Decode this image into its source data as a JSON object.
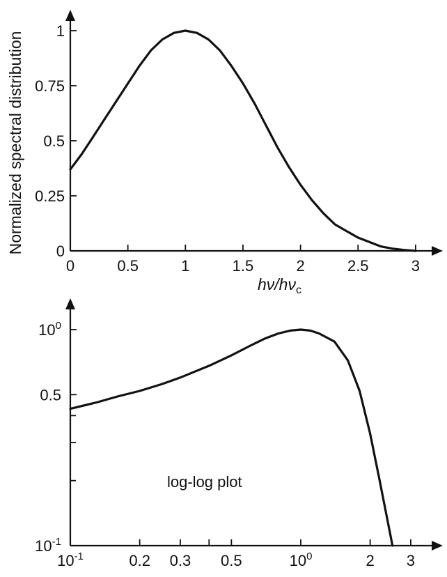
{
  "chart_data": [
    {
      "type": "line",
      "title": "",
      "ylabel": "Normalized spectral distribution",
      "xlabel": {
        "italic": "hν/hν",
        "subscript": "c"
      },
      "xlim": [
        0,
        3.2
      ],
      "ylim": [
        0,
        1.05
      ],
      "xticks": [
        0,
        0.5,
        1,
        1.5,
        2,
        2.5,
        3
      ],
      "xtick_labels": [
        "0",
        "0.5",
        "1",
        "1.5",
        "2",
        "2.5",
        "3"
      ],
      "yticks": [
        0,
        0.25,
        0.5,
        0.75,
        1
      ],
      "ytick_labels": [
        "0",
        "0.25",
        "0.5",
        "0.75",
        "1"
      ],
      "grid": false,
      "series": [
        {
          "x": [
            0,
            0.1,
            0.2,
            0.3,
            0.4,
            0.5,
            0.6,
            0.7,
            0.8,
            0.9,
            1.0,
            1.1,
            1.2,
            1.3,
            1.4,
            1.5,
            1.6,
            1.7,
            1.8,
            1.9,
            2.0,
            2.1,
            2.2,
            2.3,
            2.4,
            2.5,
            2.6,
            2.7,
            2.8,
            2.9,
            3.0
          ],
          "y": [
            0.37,
            0.44,
            0.52,
            0.6,
            0.68,
            0.76,
            0.84,
            0.91,
            0.96,
            0.99,
            1.0,
            0.99,
            0.96,
            0.91,
            0.84,
            0.76,
            0.67,
            0.57,
            0.47,
            0.38,
            0.3,
            0.23,
            0.17,
            0.12,
            0.09,
            0.06,
            0.04,
            0.02,
            0.01,
            0.004,
            0.0
          ]
        }
      ]
    },
    {
      "type": "line",
      "title": "",
      "ylabel": "",
      "xlabel": "",
      "xscale": "log",
      "yscale": "log",
      "xlim": [
        0.1,
        3.6
      ],
      "ylim": [
        0.1,
        1.25
      ],
      "xticks": [
        0.1,
        0.2,
        0.3,
        0.5,
        1,
        2,
        3
      ],
      "xtick_labels": [
        {
          "base": "10",
          "exp": "-1"
        },
        {
          "base": "0.2",
          "exp": ""
        },
        {
          "base": "0.3",
          "exp": ""
        },
        {
          "base": "0.5",
          "exp": ""
        },
        {
          "base": "10",
          "exp": "0"
        },
        {
          "base": "2",
          "exp": ""
        },
        {
          "base": "3",
          "exp": ""
        }
      ],
      "xminor_ticks": [
        0.4
      ],
      "yticks": [
        0.1,
        0.5,
        1
      ],
      "ytick_labels": [
        {
          "base": "10",
          "exp": "-1"
        },
        {
          "base": "0.5",
          "exp": ""
        },
        {
          "base": "10",
          "exp": "0"
        }
      ],
      "yminor_ticks": [
        0.2,
        0.3,
        0.4
      ],
      "grid": false,
      "annotation": "log-log plot",
      "series": [
        {
          "x": [
            0.1,
            0.13,
            0.16,
            0.2,
            0.25,
            0.3,
            0.4,
            0.5,
            0.6,
            0.7,
            0.8,
            0.9,
            1.0,
            1.1,
            1.2,
            1.4,
            1.6,
            1.8,
            2.0,
            2.2,
            2.4,
            2.5
          ],
          "y": [
            0.43,
            0.46,
            0.49,
            0.52,
            0.56,
            0.6,
            0.68,
            0.76,
            0.84,
            0.91,
            0.96,
            0.99,
            1.0,
            0.99,
            0.96,
            0.88,
            0.72,
            0.52,
            0.33,
            0.2,
            0.125,
            0.1
          ]
        }
      ]
    }
  ]
}
